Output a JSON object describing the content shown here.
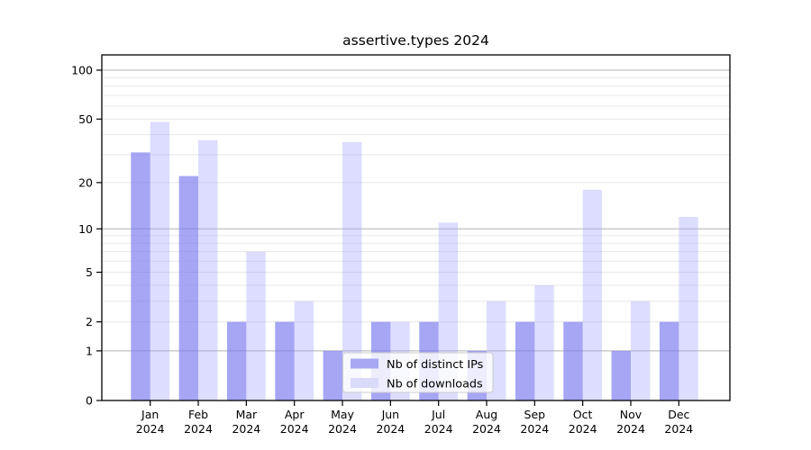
{
  "chart_data": {
    "type": "bar",
    "title": "assertive.types 2024",
    "categories": [
      "Jan",
      "Feb",
      "Mar",
      "Apr",
      "May",
      "Jun",
      "Jul",
      "Aug",
      "Sep",
      "Oct",
      "Nov",
      "Dec"
    ],
    "category_sub_label": "2024",
    "series": [
      {
        "name": "Nb of distinct IPs",
        "color": "rgba(120,120,240,0.66)",
        "legend_color": "#a7a7f4",
        "values": [
          31,
          22,
          2,
          2,
          1,
          2,
          2,
          1,
          2,
          2,
          1,
          2
        ]
      },
      {
        "name": "Nb of downloads",
        "color": "rgba(153,153,255,0.33)",
        "legend_color": "#dadaf9",
        "values": [
          48,
          37,
          7,
          3,
          36,
          2,
          11,
          3,
          4,
          18,
          3,
          12
        ]
      }
    ],
    "xlabel": "",
    "ylabel": "",
    "y_tick_labels": [
      0,
      1,
      2,
      5,
      10,
      20,
      50,
      100
    ],
    "y_major_ticks": [
      1,
      10,
      100
    ],
    "y_minor_gridlines": [
      2,
      3,
      4,
      5,
      6,
      7,
      8,
      9,
      20,
      30,
      40,
      50,
      60,
      70,
      80,
      90
    ],
    "scale": "log10(1+y), linear point at 0",
    "ylim": [
      0,
      124
    ],
    "grid": true,
    "legend_position": "lower center-left",
    "colors": {
      "background": "#ffffff",
      "axis_frame": "#000000",
      "major_gridline": "#b2b2b2",
      "minor_gridline": "#e8e8e8",
      "legend_border": "#cccccc",
      "legend_background": "rgba(255,255,255,0.8)",
      "text": "#000000"
    }
  }
}
